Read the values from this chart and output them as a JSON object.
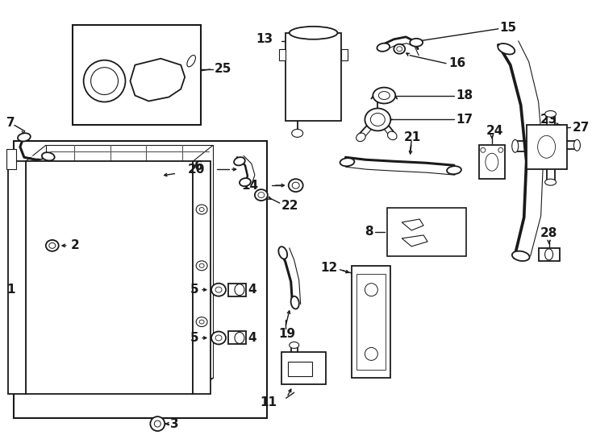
{
  "bg_color": "#ffffff",
  "line_color": "#1a1a1a",
  "part26_color": "#cc6600",
  "fig_width": 7.34,
  "fig_height": 5.4,
  "dpi": 100,
  "lw_main": 1.3,
  "lw_thin": 0.8,
  "lw_thick": 2.2
}
